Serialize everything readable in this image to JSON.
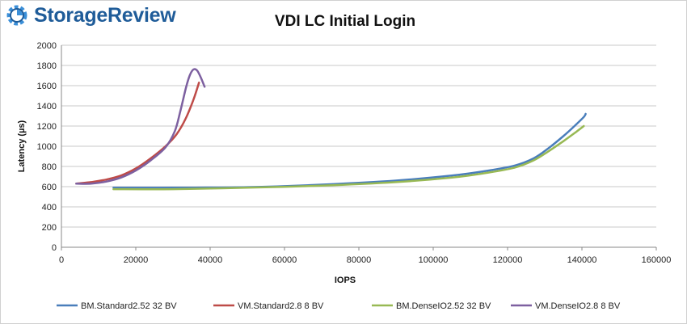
{
  "brand": {
    "name": "StorageReview"
  },
  "chart_data": {
    "type": "line",
    "title": "VDI LC Initial Login",
    "xlabel": "IOPS",
    "ylabel": "Latency (µs)",
    "xlim": [
      0,
      160000
    ],
    "ylim": [
      0,
      2000
    ],
    "xticks": [
      "0",
      "20000",
      "40000",
      "60000",
      "80000",
      "100000",
      "120000",
      "140000",
      "160000"
    ],
    "yticks": [
      "0",
      "200",
      "400",
      "600",
      "800",
      "1000",
      "1200",
      "1400",
      "1600",
      "1800",
      "2000"
    ],
    "grid": "horizontal",
    "legend": "bottom",
    "series": [
      {
        "name": "BM.Standard2.52 32 BV",
        "color": "#4a7ebb",
        "x": [
          14000,
          30000,
          50000,
          70000,
          90000,
          105000,
          115000,
          122000,
          127000,
          131000,
          135000,
          138000,
          140500,
          141000
        ],
        "y": [
          590,
          590,
          595,
          620,
          660,
          710,
          760,
          810,
          880,
          980,
          1100,
          1200,
          1290,
          1320
        ]
      },
      {
        "name": "VM.Standard2.8 8 BV",
        "color": "#be4b48",
        "x": [
          4000,
          8000,
          12000,
          16000,
          20000,
          24000,
          28000,
          31000,
          33500,
          35500,
          37000
        ],
        "y": [
          630,
          645,
          670,
          710,
          780,
          880,
          1000,
          1120,
          1280,
          1460,
          1630
        ]
      },
      {
        "name": "BM.DenseIO2.52 32 BV",
        "color": "#98b954",
        "x": [
          14000,
          30000,
          50000,
          70000,
          90000,
          105000,
          115000,
          122000,
          127000,
          131000,
          135000,
          138000,
          140500
        ],
        "y": [
          575,
          575,
          590,
          610,
          645,
          690,
          740,
          790,
          860,
          950,
          1050,
          1130,
          1200
        ]
      },
      {
        "name": "VM.DenseIO2.8 8 BV",
        "color": "#7d60a0",
        "x": [
          4000,
          8000,
          12000,
          16000,
          20000,
          24000,
          28000,
          30500,
          32000,
          33500,
          34500,
          35500,
          36500,
          37500,
          38500
        ],
        "y": [
          630,
          630,
          650,
          690,
          760,
          860,
          990,
          1150,
          1350,
          1580,
          1700,
          1760,
          1750,
          1680,
          1590
        ]
      }
    ]
  }
}
